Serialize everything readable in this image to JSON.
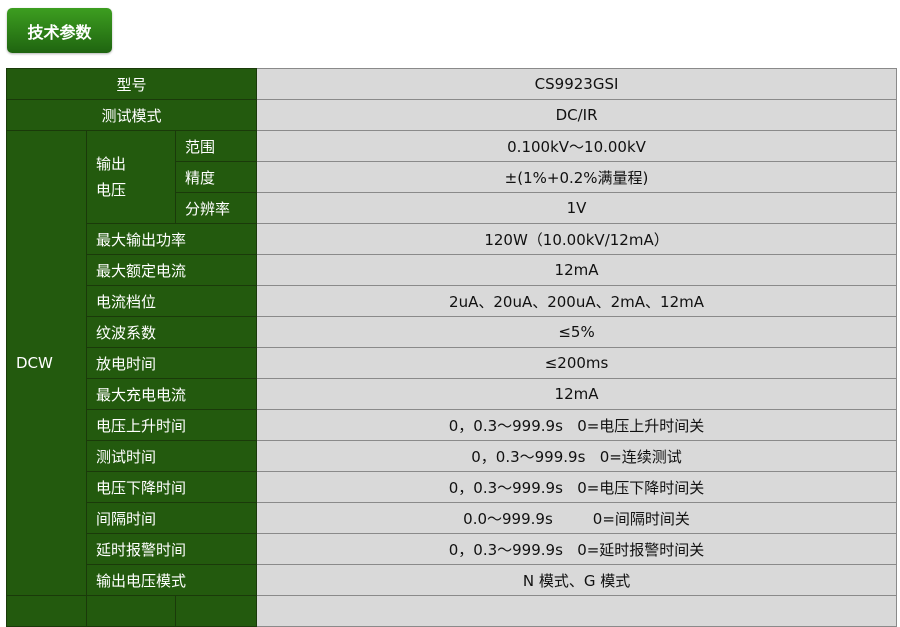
{
  "header_button": "技术参数",
  "rows": {
    "model": {
      "label": "型号",
      "value": "CS9923GSI"
    },
    "test_mode": {
      "label": "测试模式",
      "value": "DC/IR"
    },
    "dcw": "DCW",
    "output_voltage": "输出电压",
    "output_voltage_line1": "输出",
    "output_voltage_line2": "电压",
    "range": {
      "label": "范围",
      "value": "0.100kV～10.00kV"
    },
    "accuracy": {
      "label": "精度",
      "value": "±(1%+0.2%满量程)"
    },
    "resolution": {
      "label": "分辨率",
      "value": "1V"
    },
    "max_power": {
      "label": "最大输出功率",
      "value": "120W（10.00kV/12mA）"
    },
    "max_rated_current": {
      "label": "最大额定电流",
      "value": "12mA"
    },
    "current_ranges": {
      "label": "电流档位",
      "value": "2uA、20uA、200uA、2mA、12mA"
    },
    "ripple": {
      "label": "纹波系数",
      "value": "≤5%"
    },
    "discharge_time": {
      "label": "放电时间",
      "value": "≤200ms"
    },
    "max_charge_current": {
      "label": "最大充电电流",
      "value": "12mA"
    },
    "rise_time": {
      "label": "电压上升时间",
      "value": "0，0.3～999.9s   0=电压上升时间关"
    },
    "test_time": {
      "label": "测试时间",
      "value": "0，0.3～999.9s   0=连续测试"
    },
    "fall_time": {
      "label": "电压下降时间",
      "value": "0，0.3～999.9s   0=电压下降时间关"
    },
    "interval_time": {
      "label": "间隔时间",
      "value_a": "0.0～999.9s",
      "value_b": "0=间隔时间关"
    },
    "alarm_delay": {
      "label": "延时报警时间",
      "value": "0，0.3～999.9s   0=延时报警时间关"
    },
    "output_mode": {
      "label": "输出电压模式",
      "value": "N 模式、G 模式"
    }
  },
  "colors": {
    "header_green": "#235a0e",
    "value_gray": "#d9d9d9",
    "button_green": "#2e8018"
  }
}
